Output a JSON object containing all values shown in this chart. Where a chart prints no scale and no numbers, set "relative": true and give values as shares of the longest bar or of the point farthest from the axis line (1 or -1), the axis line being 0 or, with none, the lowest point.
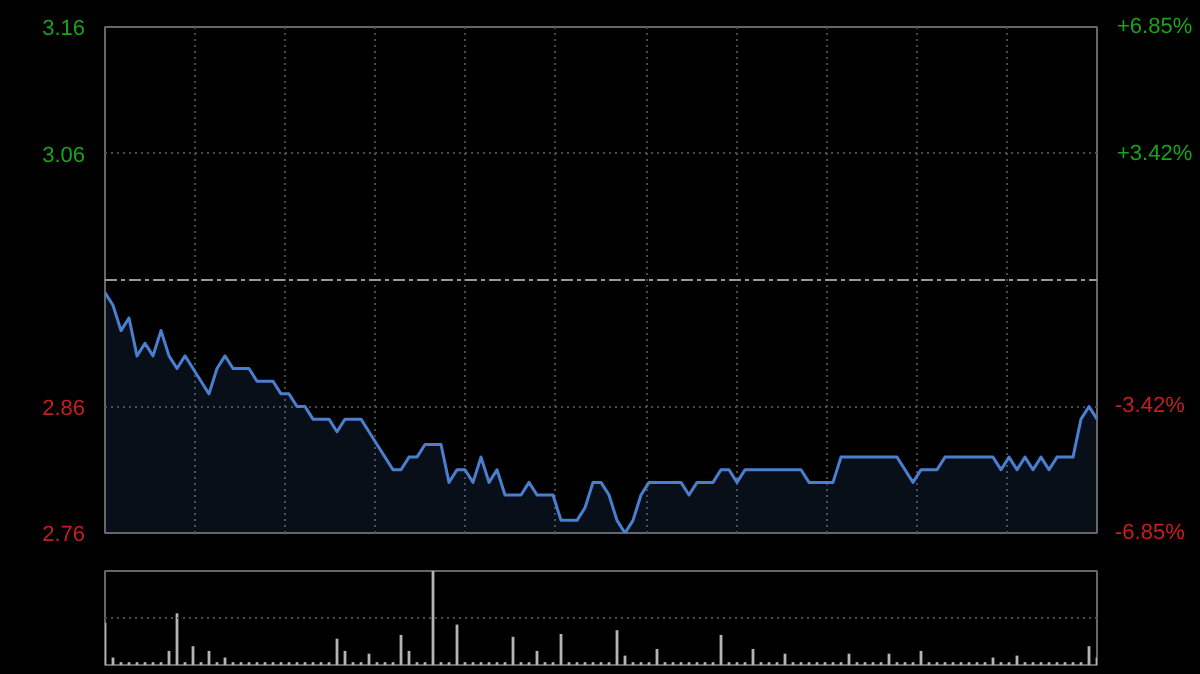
{
  "chart_data": [
    {
      "type": "area",
      "categories": [
        null,
        null,
        null,
        null,
        null,
        null,
        null,
        null,
        null,
        null,
        null,
        null,
        null,
        null,
        null,
        null,
        null,
        null,
        null,
        null,
        null,
        null,
        null,
        null,
        null,
        null,
        null,
        null,
        null,
        null,
        null,
        null,
        null,
        null,
        null,
        null,
        null,
        null,
        null,
        null,
        null,
        null,
        null,
        null,
        null,
        null,
        null,
        null,
        null,
        null,
        null,
        null,
        null,
        null,
        null,
        null,
        null,
        null,
        null,
        null,
        null,
        null,
        null,
        null,
        null,
        null,
        null,
        null,
        null,
        null,
        null,
        null,
        null,
        null,
        null,
        null,
        null,
        null,
        null,
        null,
        null,
        null,
        null,
        null,
        null,
        null,
        null,
        null,
        null,
        null,
        null,
        null,
        null,
        null,
        null,
        null,
        null,
        null,
        null,
        null,
        null,
        null,
        null,
        null,
        null,
        null,
        null,
        null,
        null,
        null,
        null,
        null,
        null,
        null,
        null,
        null,
        null,
        null,
        null,
        null,
        null,
        null,
        null,
        null,
        null
      ],
      "series": [
        {
          "color": "#4a7fd0",
          "values": [
            2.95,
            2.94,
            2.92,
            2.93,
            2.9,
            2.91,
            2.9,
            2.92,
            2.9,
            2.89,
            2.9,
            2.89,
            2.88,
            2.87,
            2.89,
            2.9,
            2.89,
            2.89,
            2.89,
            2.88,
            2.88,
            2.88,
            2.87,
            2.87,
            2.86,
            2.86,
            2.85,
            2.85,
            2.85,
            2.84,
            2.85,
            2.85,
            2.85,
            2.84,
            2.83,
            2.82,
            2.81,
            2.81,
            2.82,
            2.82,
            2.83,
            2.83,
            2.83,
            2.8,
            2.81,
            2.81,
            2.8,
            2.82,
            2.8,
            2.81,
            2.79,
            2.79,
            2.79,
            2.8,
            2.79,
            2.79,
            2.79,
            2.77,
            2.77,
            2.77,
            2.78,
            2.8,
            2.8,
            2.79,
            2.77,
            2.76,
            2.77,
            2.79,
            2.8,
            2.8,
            2.8,
            2.8,
            2.8,
            2.79,
            2.8,
            2.8,
            2.8,
            2.81,
            2.81,
            2.8,
            2.81,
            2.81,
            2.81,
            2.81,
            2.81,
            2.81,
            2.81,
            2.81,
            2.8,
            2.8,
            2.8,
            2.8,
            2.82,
            2.82,
            2.82,
            2.82,
            2.82,
            2.82,
            2.82,
            2.82,
            2.81,
            2.8,
            2.81,
            2.81,
            2.81,
            2.82,
            2.82,
            2.82,
            2.82,
            2.82,
            2.82,
            2.82,
            2.81,
            2.82,
            2.81,
            2.82,
            2.81,
            2.82,
            2.81,
            2.82,
            2.82,
            2.82,
            2.85,
            2.86,
            2.85
          ]
        }
      ],
      "ylim": [
        2.76,
        3.16
      ],
      "yticks": [
        3.16,
        3.06,
        2.86,
        2.76
      ],
      "y2lim": [
        -6.85,
        6.85
      ],
      "y2ticks": [
        {
          "value": 6.85,
          "label": "+6.85%"
        },
        {
          "value": 3.42,
          "label": "+3.42%"
        },
        {
          "value": -3.42,
          "label": "-3.42%"
        },
        {
          "value": -6.85,
          "label": "-6.85%"
        }
      ],
      "ref_lines": [
        {
          "axis": "y",
          "value": 2.96,
          "line_style": "dashed"
        }
      ],
      "grid": true
    },
    {
      "type": "bar",
      "categories": [
        null,
        null,
        null,
        null,
        null,
        null,
        null,
        null,
        null,
        null,
        null,
        null,
        null,
        null,
        null,
        null,
        null,
        null,
        null,
        null,
        null,
        null,
        null,
        null,
        null,
        null,
        null,
        null,
        null,
        null,
        null,
        null,
        null,
        null,
        null,
        null,
        null,
        null,
        null,
        null,
        null,
        null,
        null,
        null,
        null,
        null,
        null,
        null,
        null,
        null,
        null,
        null,
        null,
        null,
        null,
        null,
        null,
        null,
        null,
        null,
        null,
        null,
        null,
        null,
        null,
        null,
        null,
        null,
        null,
        null,
        null,
        null,
        null,
        null,
        null,
        null,
        null,
        null,
        null,
        null,
        null,
        null,
        null,
        null,
        null,
        null,
        null,
        null,
        null,
        null,
        null,
        null,
        null,
        null,
        null,
        null,
        null,
        null,
        null,
        null,
        null,
        null,
        null,
        null,
        null,
        null,
        null,
        null,
        null,
        null,
        null,
        null,
        null,
        null,
        null,
        null,
        null,
        null,
        null,
        null,
        null,
        null,
        null,
        null,
        null
      ],
      "values": [
        0.45,
        0.08,
        0.03,
        0.03,
        0.03,
        0.03,
        0.03,
        0.03,
        0.15,
        0.55,
        0.03,
        0.2,
        0.03,
        0.15,
        0.03,
        0.08,
        0.03,
        0.03,
        0.03,
        0.03,
        0.03,
        0.03,
        0.03,
        0.03,
        0.03,
        0.03,
        0.03,
        0.03,
        0.03,
        0.28,
        0.15,
        0.03,
        0.03,
        0.12,
        0.03,
        0.03,
        0.03,
        0.32,
        0.15,
        0.03,
        0.03,
        1,
        0.03,
        0.03,
        0.43,
        0.03,
        0.03,
        0.03,
        0.03,
        0.03,
        0.03,
        0.3,
        0.03,
        0.03,
        0.15,
        0.03,
        0.03,
        0.33,
        0.03,
        0.03,
        0.03,
        0.03,
        0.03,
        0.03,
        0.37,
        0.1,
        0.03,
        0.03,
        0.03,
        0.17,
        0.03,
        0.03,
        0.03,
        0.03,
        0.03,
        0.03,
        0.03,
        0.32,
        0.03,
        0.03,
        0.03,
        0.17,
        0.03,
        0.03,
        0.03,
        0.12,
        0.03,
        0.03,
        0.03,
        0.03,
        0.03,
        0.03,
        0.03,
        0.12,
        0.03,
        0.03,
        0.03,
        0.03,
        0.12,
        0.03,
        0.03,
        0.03,
        0.15,
        0.03,
        0.03,
        0.03,
        0.03,
        0.03,
        0.03,
        0.03,
        0.03,
        0.08,
        0.03,
        0.03,
        0.1,
        0.03,
        0.03,
        0.03,
        0.03,
        0.03,
        0.03,
        0.03,
        0.03,
        0.2,
        0.08
      ],
      "color": "#b4b4b4",
      "relative": true,
      "ref_lines": [
        {
          "axis": "y",
          "value": 0.5,
          "line_style": "dotted",
          "color": "#4a4a4a"
        }
      ]
    }
  ]
}
